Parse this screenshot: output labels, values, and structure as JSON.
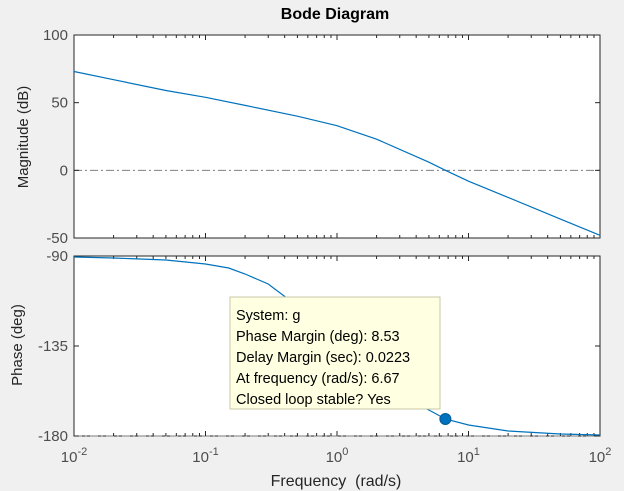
{
  "chart_data": {
    "type": "line",
    "title": "Bode Diagram",
    "xlabel": "Frequency  (rad/s)",
    "x_scale": "log",
    "xlim": [
      0.01,
      100
    ],
    "x_ticks": [
      {
        "value": 0.01,
        "base": "10",
        "exp": "-2"
      },
      {
        "value": 0.1,
        "base": "10",
        "exp": "-1"
      },
      {
        "value": 1,
        "base": "10",
        "exp": "0"
      },
      {
        "value": 10,
        "base": "10",
        "exp": "1"
      },
      {
        "value": 100,
        "base": "10",
        "exp": "2"
      }
    ],
    "colors": {
      "line": "#0072bd",
      "axes_bg": "#ffffff",
      "figure_bg": "#f0f0f0",
      "grid_ref": "#7f7f7f",
      "datatip_bg": "#ffffe1",
      "text": "#262626",
      "tick_text": "#4d4d4d"
    },
    "magnitude": {
      "ylabel": "Magnitude (dB)",
      "ylim": [
        -50,
        100
      ],
      "y_ticks": [
        {
          "value": 100,
          "label": "100"
        },
        {
          "value": 50,
          "label": "50"
        },
        {
          "value": 0,
          "label": "0"
        },
        {
          "value": -50,
          "label": "-50"
        }
      ],
      "reference_line": 0,
      "series": [
        {
          "x": [
            0.01,
            0.02,
            0.05,
            0.1,
            0.2,
            0.5,
            1,
            2,
            5,
            6.67,
            10,
            20,
            50,
            100
          ],
          "y": [
            73,
            67,
            59,
            54,
            48,
            40,
            33,
            23,
            6,
            0,
            -8,
            -20,
            -36,
            -48
          ]
        }
      ]
    },
    "phase": {
      "ylabel": "Phase (deg)",
      "ylim": [
        -180,
        -90
      ],
      "y_ticks": [
        {
          "value": -90,
          "label": "-90"
        },
        {
          "value": -135,
          "label": "-135"
        },
        {
          "value": -180,
          "label": "-180"
        }
      ],
      "reference_line": -180,
      "series": [
        {
          "x": [
            0.01,
            0.02,
            0.05,
            0.1,
            0.15,
            0.2,
            0.3,
            0.5,
            0.7,
            1,
            1.5,
            2,
            3,
            5,
            6.67,
            10,
            20,
            50,
            100
          ],
          "y": [
            -90.5,
            -91,
            -92,
            -94,
            -96,
            -99,
            -104,
            -115,
            -124,
            -134,
            -145,
            -152,
            -160,
            -167,
            -171.5,
            -174.5,
            -177.5,
            -179,
            -179.5
          ]
        }
      ],
      "marker": {
        "x": 6.67,
        "y": -171.5
      }
    },
    "datatip": {
      "lines": [
        "System: g",
        "Phase Margin (deg): 8.53",
        "Delay Margin (sec): 0.0223",
        "At frequency (rad/s): 6.67",
        "Closed loop stable? Yes"
      ]
    }
  }
}
